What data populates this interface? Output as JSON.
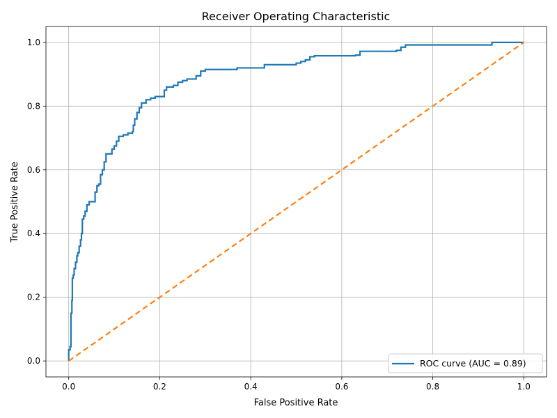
{
  "chart_data": {
    "type": "line",
    "title": "Receiver Operating Characteristic",
    "xlabel": "False Positive Rate",
    "ylabel": "True Positive Rate",
    "xlim": [
      -0.05,
      1.05
    ],
    "ylim": [
      -0.05,
      1.05
    ],
    "x_ticks": [
      0.0,
      0.2,
      0.4,
      0.6,
      0.8,
      1.0
    ],
    "y_ticks": [
      0.0,
      0.2,
      0.4,
      0.6,
      0.8,
      1.0
    ],
    "x_tick_labels": [
      "0.0",
      "0.2",
      "0.4",
      "0.6",
      "0.8",
      "1.0"
    ],
    "y_tick_labels": [
      "0.0",
      "0.2",
      "0.4",
      "0.6",
      "0.8",
      "1.0"
    ],
    "grid": true,
    "legend_position": "lower-right",
    "series": [
      {
        "name": "ROC curve (AUC = 0.89)",
        "color": "#1f77b4",
        "style": "solid",
        "x": [
          0.0,
          0.0,
          0.003,
          0.003,
          0.005,
          0.005,
          0.007,
          0.008,
          0.01,
          0.012,
          0.015,
          0.018,
          0.02,
          0.023,
          0.026,
          0.028,
          0.03,
          0.033,
          0.036,
          0.04,
          0.045,
          0.05,
          0.058,
          0.062,
          0.066,
          0.07,
          0.074,
          0.078,
          0.082,
          0.09,
          0.095,
          0.1,
          0.105,
          0.11,
          0.12,
          0.13,
          0.14,
          0.142,
          0.145,
          0.15,
          0.155,
          0.16,
          0.17,
          0.18,
          0.19,
          0.2,
          0.21,
          0.215,
          0.23,
          0.24,
          0.25,
          0.26,
          0.28,
          0.29,
          0.3,
          0.32,
          0.36,
          0.37,
          0.42,
          0.43,
          0.49,
          0.5,
          0.51,
          0.52,
          0.53,
          0.54,
          0.55,
          0.6,
          0.63,
          0.64,
          0.7,
          0.72,
          0.73,
          0.74,
          0.76,
          0.92,
          0.93,
          1.0
        ],
        "y": [
          0.0,
          0.035,
          0.035,
          0.045,
          0.045,
          0.15,
          0.19,
          0.26,
          0.27,
          0.29,
          0.31,
          0.33,
          0.34,
          0.36,
          0.38,
          0.4,
          0.445,
          0.455,
          0.47,
          0.49,
          0.5,
          0.5,
          0.53,
          0.55,
          0.555,
          0.585,
          0.6,
          0.625,
          0.65,
          0.65,
          0.665,
          0.675,
          0.69,
          0.705,
          0.71,
          0.715,
          0.72,
          0.74,
          0.76,
          0.78,
          0.795,
          0.81,
          0.82,
          0.825,
          0.83,
          0.83,
          0.85,
          0.86,
          0.865,
          0.875,
          0.88,
          0.885,
          0.895,
          0.91,
          0.915,
          0.915,
          0.915,
          0.92,
          0.92,
          0.93,
          0.93,
          0.935,
          0.94,
          0.945,
          0.955,
          0.958,
          0.958,
          0.958,
          0.96,
          0.972,
          0.972,
          0.975,
          0.985,
          0.992,
          0.992,
          0.992,
          1.0,
          1.0
        ]
      },
      {
        "name": "",
        "color": "#ff7f0e",
        "style": "dashed",
        "x": [
          0.0,
          1.0
        ],
        "y": [
          0.0,
          1.0
        ]
      }
    ]
  }
}
